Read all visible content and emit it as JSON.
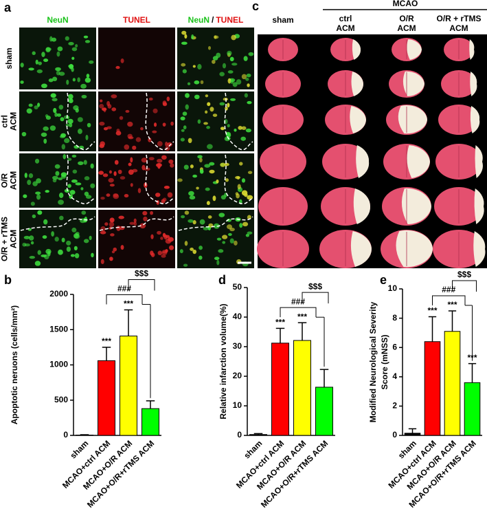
{
  "panel_a": {
    "label": "a",
    "column_titles": [
      "NeuN",
      "TUNEL"
    ],
    "merged_title": [
      "NeuN",
      "/",
      "TUNEL"
    ],
    "row_labels": [
      [
        "sham"
      ],
      [
        "ctrl",
        "ACM"
      ],
      [
        "O/R",
        "ACM"
      ],
      [
        "O/R + rTMS",
        "ACM"
      ]
    ]
  },
  "panel_c": {
    "label": "c",
    "group": "MCAO",
    "column_labels": [
      [
        "sham"
      ],
      [
        "ctrl",
        "ACM"
      ],
      [
        "O/R",
        "ACM"
      ],
      [
        "O/R + rTMS",
        "ACM"
      ]
    ]
  },
  "chart_data": [
    {
      "type": "bar",
      "panel": "b",
      "ylabel": [
        "Apoptotic neruons (cells/mm²)"
      ],
      "categories": [
        "sham",
        "MCAO+ctrl ACM",
        "MCAO+O/R ACM",
        "MCAO+O/R+rTMS ACM"
      ],
      "values": [
        5,
        1060,
        1410,
        380
      ],
      "errors": [
        5,
        190,
        370,
        110
      ],
      "colors": [
        "#000000",
        "#ff0000",
        "#ffff00",
        "#00ff00"
      ],
      "bar_labels": [
        null,
        "***",
        "***",
        null
      ],
      "brackets": [
        "###",
        "$$$"
      ],
      "ylim": [
        0,
        2000
      ],
      "yticks": [
        0,
        500,
        1000,
        1500,
        2000
      ]
    },
    {
      "type": "bar",
      "panel": "d",
      "ylabel": [
        "Relative infarction volume(%)"
      ],
      "categories": [
        "sham",
        "MCAO+ctrl ACM",
        "MCAO+O/R ACM",
        "MCAO+O/R+rTMS ACM"
      ],
      "values": [
        0.3,
        31.2,
        32.1,
        16.3
      ],
      "errors": [
        0.3,
        5,
        6,
        6
      ],
      "colors": [
        "#000000",
        "#ff0000",
        "#ffff00",
        "#00ff00"
      ],
      "bar_labels": [
        null,
        "***",
        "***",
        null
      ],
      "brackets": [
        "###",
        "$$$"
      ],
      "ylim": [
        0,
        50
      ],
      "yticks": [
        0,
        10,
        20,
        30,
        40,
        50
      ]
    },
    {
      "type": "bar",
      "panel": "e",
      "ylabel": [
        "Modified Neurological Severity",
        "Score (mNSS)"
      ],
      "categories": [
        "sham",
        "MCAO+ctrl ACM",
        "MCAO+O/R ACM",
        "MCAO+O/R+rTMS ACM"
      ],
      "values": [
        0.15,
        6.4,
        7.1,
        3.6
      ],
      "errors": [
        0.3,
        1.7,
        1.4,
        1.3
      ],
      "colors": [
        "#000000",
        "#ff0000",
        "#ffff00",
        "#00ff00"
      ],
      "bar_labels": [
        null,
        "***",
        "***",
        "***"
      ],
      "brackets": [
        "###",
        "$$$"
      ],
      "ylim": [
        0,
        10
      ],
      "yticks": [
        0,
        2,
        4,
        6,
        8,
        10
      ]
    }
  ]
}
